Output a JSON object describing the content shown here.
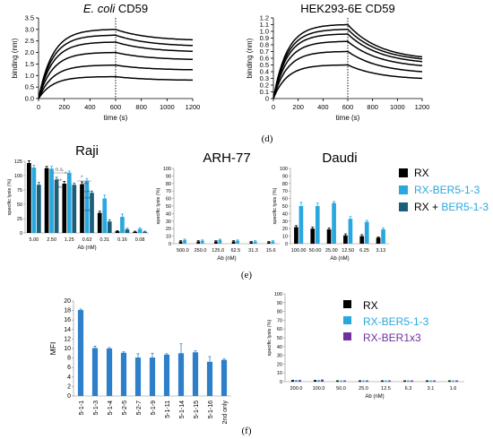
{
  "panels": {
    "d": "(d)",
    "e": "(e)",
    "f": "(f)"
  },
  "colors": {
    "rx": "#000000",
    "ber": "#29a8e0",
    "combo": "#1a5f7a",
    "ber1x3": "#7030a0",
    "mfi_bar": "#2e7fc9",
    "sig_text": "#555555"
  },
  "chart_data": [
    {
      "id": "ecoli",
      "type": "line",
      "title_italic": "E. coli",
      "title_rest": " CD59",
      "xlabel": "time (s)",
      "ylabel": "binding (nm)",
      "xlim": [
        0,
        1200
      ],
      "ylim": [
        0,
        3.5
      ],
      "xticks": [
        0,
        200,
        400,
        600,
        800,
        1000,
        1200
      ],
      "yticks": [
        0.0,
        0.5,
        1.0,
        1.5,
        2.0,
        2.5,
        3.0,
        3.5
      ],
      "ytick_labels": [
        "0.0",
        "0.5",
        "1.0",
        "1.5",
        "2.0",
        "2.5",
        "3.0",
        "3.5"
      ],
      "association_end": 600,
      "series": [
        {
          "plateau": 3.0,
          "end": 2.55
        },
        {
          "plateau": 2.75,
          "end": 2.3
        },
        {
          "plateau": 2.45,
          "end": 2.05
        },
        {
          "plateau": 2.0,
          "end": 1.7
        },
        {
          "plateau": 1.45,
          "end": 1.25
        },
        {
          "plateau": 0.95,
          "end": 0.8
        }
      ]
    },
    {
      "id": "hek",
      "type": "line",
      "title": "HEK293-6E CD59",
      "xlabel": "time (s)",
      "ylabel": "binding (nm)",
      "xlim": [
        0,
        1200
      ],
      "ylim": [
        0,
        1.2
      ],
      "xticks": [
        0,
        200,
        400,
        600,
        800,
        1000,
        1200
      ],
      "yticks": [
        0.0,
        0.1,
        0.2,
        0.3,
        0.4,
        0.5,
        0.6,
        0.7,
        0.8,
        0.9,
        1.0,
        1.1,
        1.2
      ],
      "ytick_labels": [
        "0",
        "0.1",
        "0.2",
        "0.3",
        "0.4",
        "0.5",
        "0.6",
        "0.7",
        "0.8",
        "0.9",
        "1.0",
        "1.1",
        "1.2"
      ],
      "association_end": 600,
      "series": [
        {
          "plateau": 1.1,
          "end": 0.62
        },
        {
          "plateau": 1.03,
          "end": 0.59
        },
        {
          "plateau": 0.96,
          "end": 0.55
        },
        {
          "plateau": 0.85,
          "end": 0.49
        },
        {
          "plateau": 0.7,
          "end": 0.4
        },
        {
          "plateau": 0.5,
          "end": 0.3
        }
      ]
    },
    {
      "id": "raji",
      "type": "bar",
      "title": "Raji",
      "xlabel": "Ab (nM)",
      "ylabel": "specific lysis (%)",
      "ylim": [
        0,
        125
      ],
      "yticks": [
        0,
        25,
        50,
        75,
        100,
        125
      ],
      "categories": [
        "5.00",
        "2.50",
        "1.25",
        "0.63",
        "0.31",
        "0.16",
        "0.08"
      ],
      "series": [
        {
          "key": "rx",
          "values": [
            122,
            113,
            86,
            85,
            35,
            3,
            2
          ],
          "err": [
            4,
            3,
            4,
            4,
            3,
            1,
            1
          ]
        },
        {
          "key": "ber",
          "values": [
            114,
            112,
            105,
            91,
            60,
            28,
            7
          ],
          "err": [
            4,
            4,
            3,
            4,
            6,
            5,
            2
          ]
        },
        {
          "key": "combo",
          "values": [
            84,
            93,
            84,
            70,
            20,
            6,
            2
          ],
          "err": [
            4,
            4,
            3,
            3,
            3,
            2,
            1
          ]
        }
      ],
      "annotations": [
        "n.s.",
        "*",
        "***",
        "***",
        "*",
        "**",
        "***",
        "***",
        "**",
        "***"
      ]
    },
    {
      "id": "arh",
      "type": "bar",
      "title": "ARH-77",
      "xlabel": "Ab (nM)",
      "ylabel": "specific lysis (%)",
      "ylim": [
        0,
        100
      ],
      "yticks": [
        0,
        10,
        20,
        30,
        40,
        50,
        60,
        70,
        80,
        90,
        100
      ],
      "categories": [
        "500.0",
        "250.0",
        "125.0",
        "62.5",
        "31.3",
        "15.6"
      ],
      "series": [
        {
          "key": "rx",
          "values": [
            3,
            3,
            3,
            3,
            2,
            2
          ],
          "err": [
            1,
            1,
            1,
            1,
            1,
            1
          ]
        },
        {
          "key": "ber",
          "values": [
            5,
            4,
            5,
            4,
            3,
            3
          ],
          "err": [
            1,
            1,
            1,
            1,
            1,
            1
          ]
        }
      ]
    },
    {
      "id": "daudi",
      "type": "bar",
      "title": "Daudi",
      "xlabel": "Ab (nM)",
      "ylabel": "specific lysis (%)",
      "ylim": [
        0,
        100
      ],
      "yticks": [
        0,
        10,
        20,
        30,
        40,
        50,
        60,
        70,
        80,
        90,
        100
      ],
      "categories": [
        "100.00",
        "50.00",
        "25.00",
        "12.50",
        "6.25",
        "3.13"
      ],
      "series": [
        {
          "key": "rx",
          "values": [
            22,
            20,
            19,
            11,
            10,
            8
          ],
          "err": [
            2,
            2,
            2,
            2,
            2,
            1
          ]
        },
        {
          "key": "ber",
          "values": [
            50,
            50,
            54,
            33,
            29,
            19
          ],
          "err": [
            5,
            4,
            2,
            3,
            2,
            2
          ]
        }
      ]
    },
    {
      "id": "mfi",
      "type": "bar",
      "xlabel": "",
      "ylabel": "MFI",
      "ylim": [
        0,
        20
      ],
      "yticks": [
        0,
        2,
        4,
        6,
        8,
        10,
        12,
        14,
        16,
        18,
        20
      ],
      "categories": [
        "5-1-1",
        "5-1-3",
        "5-1-4",
        "5-2-5",
        "5-2-7",
        "5-1-9",
        "5-1-11",
        "5-1-14",
        "5-1-15",
        "5-1-16",
        "2nd only"
      ],
      "values": [
        18.1,
        10.1,
        10.0,
        9.1,
        8.1,
        8.1,
        8.7,
        9.0,
        9.2,
        7.2,
        7.6
      ],
      "err": [
        0.2,
        0.4,
        0.2,
        0.2,
        0.8,
        0.9,
        0.2,
        2.0,
        0.3,
        1.1,
        0.2
      ]
    },
    {
      "id": "f2",
      "type": "bar",
      "xlabel": "Ab (nM)",
      "ylabel": "specific lysis (%)",
      "ylim": [
        0,
        100
      ],
      "yticks": [
        0,
        10,
        20,
        30,
        40,
        50,
        60,
        70,
        80,
        90,
        100
      ],
      "categories": [
        "200.0",
        "100.0",
        "50.0",
        "25.0",
        "12.5",
        "6.3",
        "3.1",
        "1.6"
      ],
      "series": [
        {
          "key": "rx",
          "values": [
            1,
            1,
            0.5,
            0.5,
            0.5,
            0.5,
            0.5,
            0.5
          ],
          "err": [
            0.5,
            0.5,
            0.5,
            0.5,
            0.5,
            0.5,
            0.5,
            0.5
          ]
        },
        {
          "key": "ber",
          "values": [
            1,
            1,
            0.5,
            0.5,
            0.5,
            0.5,
            0.5,
            0.5
          ],
          "err": [
            0.5,
            0.5,
            0.5,
            0.5,
            0.5,
            0.5,
            0.5,
            0.5
          ]
        },
        {
          "key": "ber1x3",
          "values": [
            1,
            1.5,
            0.5,
            0.5,
            0.5,
            0.5,
            0.5,
            0.5
          ],
          "err": [
            0.5,
            0.5,
            0.5,
            0.5,
            0.5,
            0.5,
            0.5,
            0.5
          ]
        }
      ]
    }
  ],
  "legend_e": {
    "rx": "RX",
    "ber": "RX-BER5-1-3",
    "combo_prefix": "RX + ",
    "combo_suffix": "BER5-1-3"
  },
  "legend_f": {
    "rx": "RX",
    "ber": "RX-BER5-1-3",
    "ber1x3": "RX-BER1x3"
  }
}
